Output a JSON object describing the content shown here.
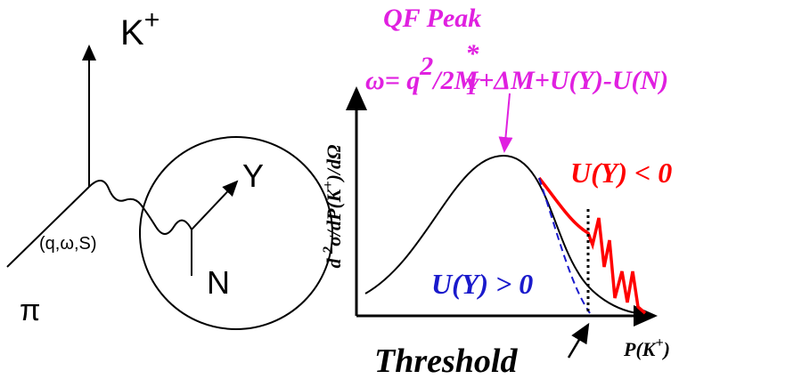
{
  "left_diagram": {
    "kaon": {
      "base": "K",
      "sup": "+"
    },
    "hyperon": "Y",
    "vertex": "(q,ω,S)",
    "nucleon": "N",
    "pion": "π"
  },
  "right_plot": {
    "peak_title": "QF Peak",
    "formula": {
      "lead": "ω= q",
      "exp": "2",
      "mid": "/2M",
      "star": "*",
      "sub": "Y",
      "tail": "+ΔM+U(Y)-U(N)"
    },
    "y_label": {
      "a": "d ",
      "exp": "2",
      "b": "σ/dP(K",
      "sup": "+",
      "c": ")/dΩ"
    },
    "attractive": "U(Y) < 0",
    "repulsive": "U(Y) > 0",
    "threshold": "Threshold",
    "x_label": {
      "a": "P(K",
      "sup": "+",
      "b": ")"
    }
  }
}
